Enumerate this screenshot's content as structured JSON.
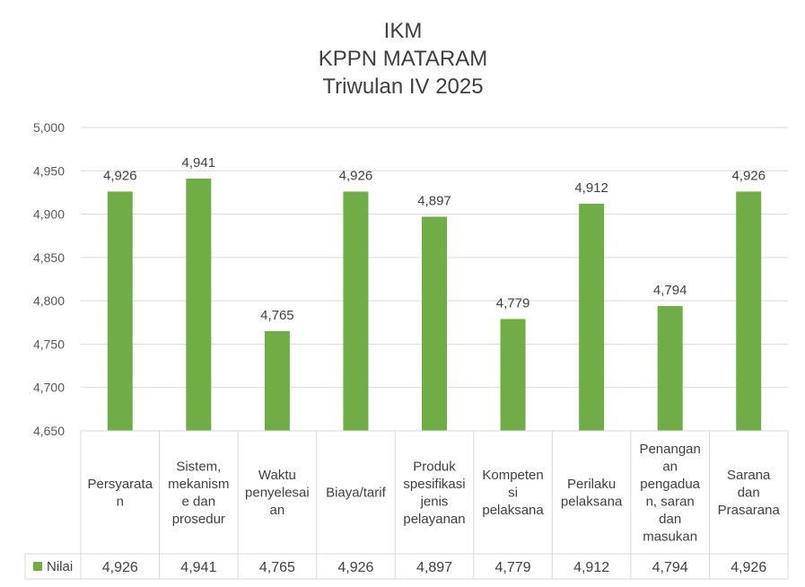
{
  "chart_data": {
    "type": "bar",
    "title": [
      "IKM",
      "KPPN MATARAM",
      "Triwulan IV 2025"
    ],
    "categories": [
      [
        "Persyarata",
        "n"
      ],
      [
        "Sistem,",
        "mekanism",
        "e dan",
        "prosedur"
      ],
      [
        "Waktu",
        "penyelesai",
        "an"
      ],
      [
        "Biaya/tarif"
      ],
      [
        "Produk",
        "spesifikasi",
        "jenis",
        "pelayanan"
      ],
      [
        "Kompeten",
        "si",
        "pelaksana"
      ],
      [
        "Perilaku",
        "pelaksana"
      ],
      [
        "Penangan",
        "an",
        "pengadua",
        "n, saran",
        "dan",
        "masukan"
      ],
      [
        "Sarana",
        "dan",
        "Prasarana"
      ]
    ],
    "series": [
      {
        "name": "Nilai",
        "values": [
          4.926,
          4.941,
          4.765,
          4.926,
          4.897,
          4.779,
          4.912,
          4.794,
          4.926
        ],
        "labels": [
          "4,926",
          "4,941",
          "4,765",
          "4,926",
          "4,897",
          "4,779",
          "4,912",
          "4,794",
          "4,926"
        ],
        "color": "#70ad47"
      }
    ],
    "ylim": [
      4.65,
      5.0
    ],
    "yticks": [
      "4,650",
      "4,700",
      "4,750",
      "4,800",
      "4,850",
      "4,900",
      "4,950",
      "5,000"
    ],
    "grid": true,
    "legend": "data-table",
    "gridColor": "#d9d9d9"
  }
}
